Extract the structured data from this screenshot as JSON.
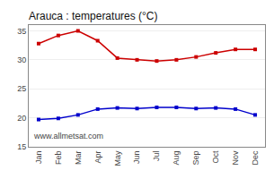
{
  "chart_data": {
    "type": "line",
    "title": "Arauca : temperatures (°C)",
    "categories": [
      "Jan",
      "Feb",
      "Mar",
      "Apr",
      "May",
      "Jun",
      "Jul",
      "Aug",
      "Sep",
      "Oct",
      "Nov",
      "Dec"
    ],
    "series": [
      {
        "color": "#cc0000",
        "values": [
          32.8,
          34.2,
          35.0,
          33.3,
          30.3,
          30.0,
          29.8,
          30.0,
          30.5,
          31.2,
          31.8,
          31.8
        ]
      },
      {
        "color": "#0000cc",
        "values": [
          19.7,
          19.9,
          20.5,
          21.5,
          21.7,
          21.6,
          21.8,
          21.8,
          21.6,
          21.7,
          21.5,
          20.5
        ]
      }
    ],
    "ylim": [
      15,
      36
    ],
    "yticks": [
      15,
      20,
      25,
      30,
      35
    ],
    "grid": "y",
    "marker": "square",
    "line_style": "solid",
    "annotations": [
      "www.allmetsat.com"
    ]
  }
}
